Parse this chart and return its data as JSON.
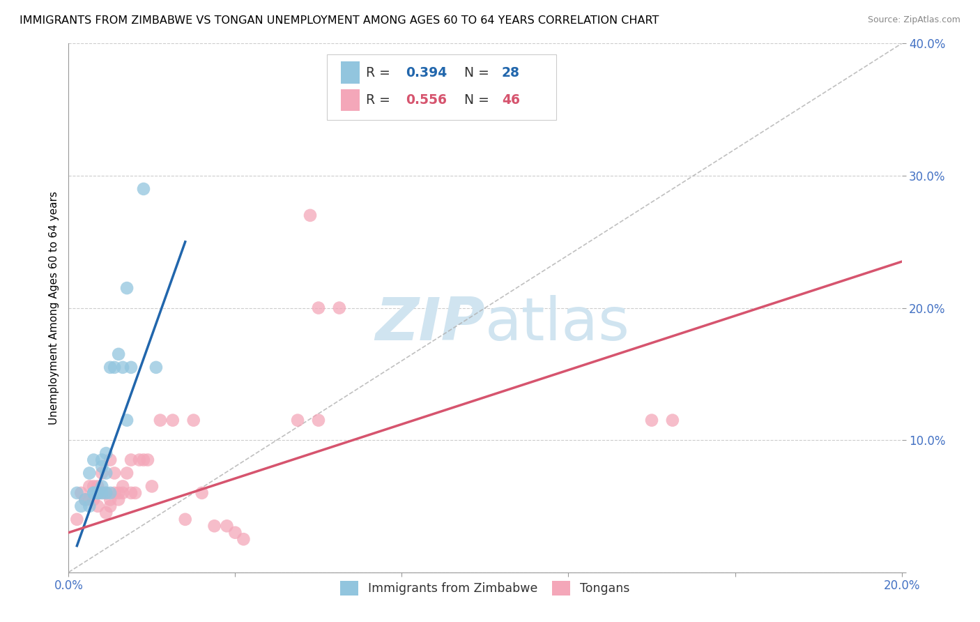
{
  "title": "IMMIGRANTS FROM ZIMBABWE VS TONGAN UNEMPLOYMENT AMONG AGES 60 TO 64 YEARS CORRELATION CHART",
  "source": "Source: ZipAtlas.com",
  "ylabel": "Unemployment Among Ages 60 to 64 years",
  "xlim": [
    0.0,
    0.2
  ],
  "ylim": [
    0.0,
    0.4
  ],
  "xtick_positions": [
    0.0,
    0.04,
    0.08,
    0.12,
    0.16,
    0.2
  ],
  "ytick_positions": [
    0.0,
    0.1,
    0.2,
    0.3,
    0.4
  ],
  "legend_r1": "0.394",
  "legend_n1": "28",
  "legend_r2": "0.556",
  "legend_n2": "46",
  "blue_color": "#92c5de",
  "pink_color": "#f4a7b9",
  "blue_line_color": "#2166ac",
  "pink_line_color": "#d6546e",
  "dashed_line_color": "#b0b0b0",
  "watermark_color": "#d0e4f0",
  "tick_color": "#4472c4",
  "title_fontsize": 11.5,
  "tick_fontsize": 12,
  "ylabel_fontsize": 11,
  "blue_scatter_x": [
    0.002,
    0.003,
    0.004,
    0.005,
    0.005,
    0.006,
    0.006,
    0.006,
    0.007,
    0.007,
    0.007,
    0.008,
    0.008,
    0.008,
    0.008,
    0.009,
    0.009,
    0.009,
    0.01,
    0.01,
    0.011,
    0.012,
    0.013,
    0.014,
    0.014,
    0.015,
    0.018,
    0.021
  ],
  "blue_scatter_y": [
    0.06,
    0.05,
    0.055,
    0.05,
    0.075,
    0.06,
    0.06,
    0.085,
    0.06,
    0.06,
    0.06,
    0.06,
    0.065,
    0.08,
    0.085,
    0.06,
    0.075,
    0.09,
    0.06,
    0.155,
    0.155,
    0.165,
    0.155,
    0.215,
    0.115,
    0.155,
    0.29,
    0.155
  ],
  "pink_scatter_x": [
    0.002,
    0.003,
    0.004,
    0.005,
    0.005,
    0.006,
    0.006,
    0.007,
    0.007,
    0.008,
    0.008,
    0.009,
    0.009,
    0.01,
    0.01,
    0.01,
    0.011,
    0.011,
    0.012,
    0.012,
    0.013,
    0.013,
    0.014,
    0.015,
    0.015,
    0.016,
    0.017,
    0.018,
    0.019,
    0.02,
    0.022,
    0.025,
    0.028,
    0.03,
    0.032,
    0.035,
    0.038,
    0.04,
    0.042,
    0.055,
    0.058,
    0.06,
    0.14,
    0.145,
    0.06,
    0.065
  ],
  "pink_scatter_y": [
    0.04,
    0.06,
    0.055,
    0.055,
    0.065,
    0.055,
    0.065,
    0.05,
    0.065,
    0.06,
    0.075,
    0.045,
    0.06,
    0.05,
    0.055,
    0.085,
    0.06,
    0.075,
    0.055,
    0.06,
    0.06,
    0.065,
    0.075,
    0.06,
    0.085,
    0.06,
    0.085,
    0.085,
    0.085,
    0.065,
    0.115,
    0.115,
    0.04,
    0.115,
    0.06,
    0.035,
    0.035,
    0.03,
    0.025,
    0.115,
    0.27,
    0.2,
    0.115,
    0.115,
    0.115,
    0.2
  ],
  "blue_line_x": [
    0.002,
    0.028
  ],
  "blue_line_y": [
    0.02,
    0.25
  ],
  "pink_line_x": [
    0.0,
    0.2
  ],
  "pink_line_y": [
    0.03,
    0.235
  ]
}
